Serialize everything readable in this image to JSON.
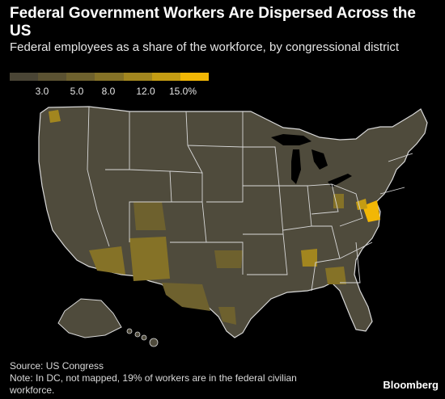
{
  "header": {
    "title": "Federal Government Workers Are Dispersed Across the US",
    "subtitle": "Federal employees as a share of the workforce, by congressional district"
  },
  "legend": {
    "ticks": [
      "3.0",
      "5.0",
      "8.0",
      "12.0",
      "15.0%"
    ],
    "colors": [
      "#4a4535",
      "#5b5232",
      "#6e612e",
      "#857227",
      "#a2861f",
      "#c49c13",
      "#f2b705"
    ]
  },
  "footer": {
    "source": "Source: US Congress",
    "note": "Note: In DC, not mapped, 19% of workers are in the federal civilian workforce.",
    "brand": "Bloomberg"
  },
  "colors": {
    "background": "#000000",
    "border": "#d8d8d8",
    "lowest": "#4a4535",
    "highest": "#f2b705"
  }
}
